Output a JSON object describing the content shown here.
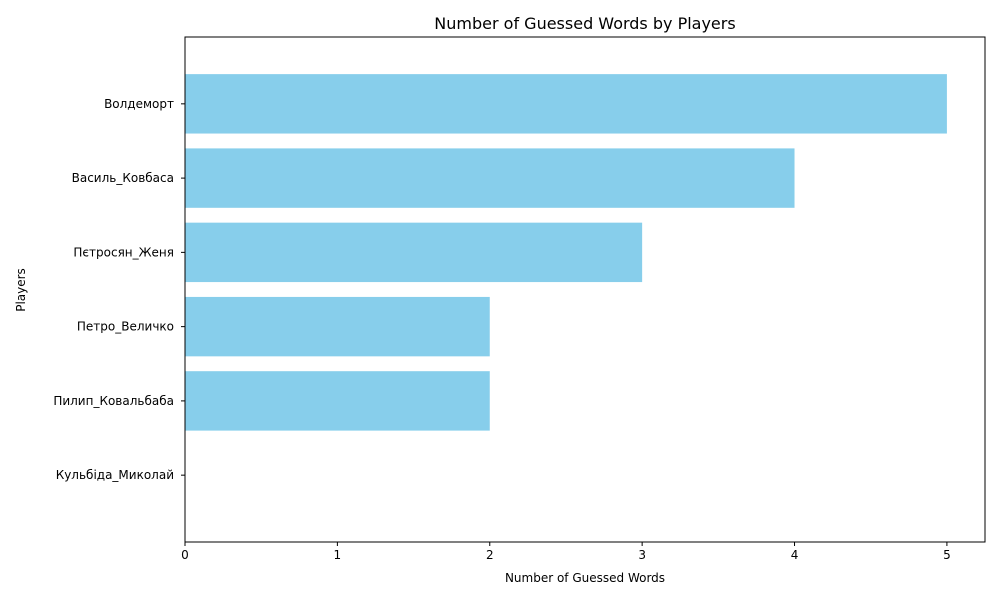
{
  "chart_data": {
    "type": "bar",
    "orientation": "horizontal",
    "title": "Number of Guessed Words by Players",
    "xlabel": "Number of Guessed Words",
    "ylabel": "Players",
    "categories": [
      "Кульбіда_Миколай",
      "Пилип_Ковальбаба",
      "Петро_Величко",
      "Пєтросян_Женя",
      "Василь_Ковбаса",
      "Волдеморт"
    ],
    "values": [
      0,
      2,
      2,
      3,
      4,
      5
    ],
    "xlim": [
      0,
      5.25
    ],
    "xticks": [
      "0",
      "1",
      "2",
      "3",
      "4",
      "5"
    ],
    "bar_color": "#87CEEB",
    "grid": false,
    "legend": false
  }
}
